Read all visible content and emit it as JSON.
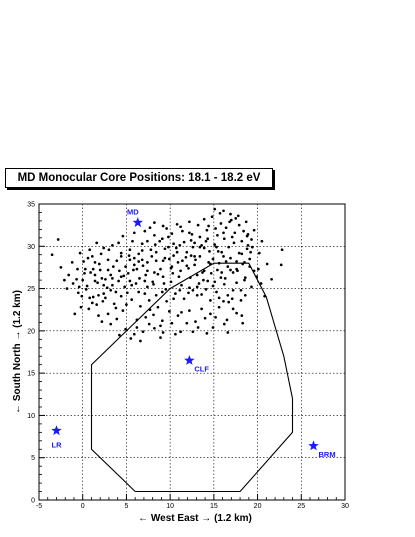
{
  "chart_data": {
    "type": "scatter",
    "title": "MD Monocular Core Positions: 18.1 - 18.2 eV",
    "xlabel": "← West East → (1.2 km)",
    "ylabel": "← South North → (1.2 km)",
    "xlim": [
      -5,
      30
    ],
    "ylim": [
      0,
      35
    ],
    "x_ticks": [
      -5,
      0,
      5,
      10,
      15,
      20,
      25,
      30
    ],
    "y_ticks": [
      0,
      5,
      10,
      15,
      20,
      25,
      30,
      35
    ],
    "grid": true,
    "marker_color": "#000000",
    "site_color": "#1a1aff",
    "sites": [
      {
        "name": "MD",
        "x": 6.3,
        "y": 32.8
      },
      {
        "name": "CLF",
        "x": 12.2,
        "y": 16.5
      },
      {
        "name": "LR",
        "x": -3.0,
        "y": 8.2
      },
      {
        "name": "BRM",
        "x": 26.4,
        "y": 6.4
      }
    ],
    "boundary": [
      [
        6,
        1
      ],
      [
        18,
        1
      ],
      [
        24,
        8
      ],
      [
        24,
        12
      ],
      [
        23,
        17
      ],
      [
        21,
        24
      ],
      [
        19,
        28
      ],
      [
        15,
        28
      ],
      [
        10,
        25
      ],
      [
        1,
        16
      ],
      [
        1,
        6
      ],
      [
        6,
        1
      ]
    ],
    "points": [
      [
        -2.8,
        30.8
      ],
      [
        -3.5,
        29
      ],
      [
        -2.5,
        27.5
      ],
      [
        -1.8,
        25
      ],
      [
        -0.9,
        22
      ],
      [
        -0.5,
        24.5
      ],
      [
        0,
        26
      ],
      [
        0.3,
        27.3
      ],
      [
        0.6,
        28.6
      ],
      [
        0.9,
        26.9
      ],
      [
        1.2,
        24
      ],
      [
        1.4,
        28.1
      ],
      [
        1.7,
        25.7
      ],
      [
        2,
        27.2
      ],
      [
        2.3,
        23.5
      ],
      [
        2.6,
        26.1
      ],
      [
        2.9,
        28.4
      ],
      [
        3.2,
        24.8
      ],
      [
        3.5,
        27.6
      ],
      [
        3.8,
        22.7
      ],
      [
        4.1,
        25.9
      ],
      [
        4.4,
        29.2
      ],
      [
        4.7,
        26.5
      ],
      [
        5,
        23.1
      ],
      [
        5.3,
        28.9
      ],
      [
        5.6,
        25.4
      ],
      [
        5.9,
        27.8
      ],
      [
        6.2,
        21.3
      ],
      [
        6.5,
        26.2
      ],
      [
        6.8,
        29.5
      ],
      [
        7.1,
        24.4
      ],
      [
        7.4,
        27.1
      ],
      [
        7.7,
        22.5
      ],
      [
        8,
        25.8
      ],
      [
        8.3,
        30.2
      ],
      [
        8.6,
        26.7
      ],
      [
        8.9,
        20.6
      ],
      [
        9.2,
        28.3
      ],
      [
        9.5,
        24.9
      ],
      [
        9.8,
        31.1
      ],
      [
        10.1,
        27.4
      ],
      [
        10.4,
        23.8
      ],
      [
        10.7,
        29.8
      ],
      [
        11,
        26.4
      ],
      [
        11.3,
        22.2
      ],
      [
        11.6,
        30.5
      ],
      [
        11.9,
        27.7
      ],
      [
        12.2,
        25.1
      ],
      [
        12.5,
        31.4
      ],
      [
        12.8,
        28.8
      ],
      [
        13.1,
        24.2
      ],
      [
        13.4,
        29.9
      ],
      [
        13.7,
        26.9
      ],
      [
        14,
        21.5
      ],
      [
        14.3,
        30.9
      ],
      [
        14.6,
        27.9
      ],
      [
        14.9,
        25.3
      ],
      [
        15.2,
        32.1
      ],
      [
        15.5,
        29.4
      ],
      [
        15.8,
        26.3
      ],
      [
        16.1,
        31.6
      ],
      [
        16.4,
        28.2
      ],
      [
        16.7,
        23.4
      ],
      [
        17,
        33.1
      ],
      [
        17.3,
        30.4
      ],
      [
        17.6,
        27.3
      ],
      [
        17.9,
        32.5
      ],
      [
        18.2,
        29.1
      ],
      [
        18.5,
        26
      ],
      [
        18.8,
        31.2
      ],
      [
        19.1,
        28.5
      ],
      [
        19.6,
        27.1
      ],
      [
        22.8,
        29.6
      ],
      [
        22.7,
        27.8
      ],
      [
        15.1,
        34.4
      ],
      [
        16.1,
        34.2
      ],
      [
        16.9,
        33.8
      ],
      [
        17.5,
        33.3
      ],
      [
        15.7,
        33.9
      ],
      [
        13.9,
        33.2
      ],
      [
        12.2,
        32.9
      ],
      [
        10.8,
        32.6
      ],
      [
        9.6,
        32.1
      ],
      [
        8.2,
        31.3
      ],
      [
        7.1,
        31.8
      ],
      [
        6.8,
        30.3
      ],
      [
        5.7,
        30.6
      ],
      [
        4.1,
        30.4
      ],
      [
        3,
        29.6
      ],
      [
        2.1,
        29.1
      ],
      [
        1.1,
        28.8
      ],
      [
        0.1,
        28.2
      ],
      [
        -0.6,
        27.3
      ],
      [
        0.5,
        25.3
      ],
      [
        1.1,
        23.3
      ],
      [
        1.8,
        21.8
      ],
      [
        2.9,
        22
      ],
      [
        3.9,
        21.4
      ],
      [
        4.9,
        20.2
      ],
      [
        5.9,
        19.6
      ],
      [
        6.9,
        19.9
      ],
      [
        7.6,
        20.8
      ],
      [
        8.1,
        21.9
      ],
      [
        9.1,
        21.2
      ],
      [
        9.9,
        22.3
      ],
      [
        10.9,
        21.8
      ],
      [
        11.9,
        20.9
      ],
      [
        12.9,
        21.1
      ],
      [
        13.6,
        22.6
      ],
      [
        14.6,
        22
      ],
      [
        15.6,
        22.8
      ],
      [
        16.5,
        21.3
      ],
      [
        17.6,
        22.1
      ],
      [
        18.1,
        23.6
      ],
      [
        18.6,
        24.2
      ],
      [
        19.3,
        25.2
      ],
      [
        17.2,
        24.8
      ],
      [
        16.2,
        25.5
      ],
      [
        15.3,
        24.6
      ],
      [
        14.3,
        25.9
      ],
      [
        13.3,
        25.6
      ],
      [
        12.3,
        26.3
      ],
      [
        11.3,
        25.4
      ],
      [
        10.3,
        26.8
      ],
      [
        9.3,
        25.6
      ],
      [
        8.4,
        24.2
      ],
      [
        7.4,
        25.2
      ],
      [
        6.4,
        24.6
      ],
      [
        5.4,
        25.9
      ],
      [
        4.4,
        24.1
      ],
      [
        3.4,
        25.4
      ],
      [
        2.4,
        24.4
      ],
      [
        1.4,
        25.9
      ],
      [
        1.9,
        27.9
      ],
      [
        2.9,
        27.2
      ],
      [
        3.9,
        28.3
      ],
      [
        4.9,
        27.6
      ],
      [
        5.9,
        28.6
      ],
      [
        6.9,
        27.7
      ],
      [
        7.9,
        28.8
      ],
      [
        8.9,
        27.3
      ],
      [
        9.9,
        28.5
      ],
      [
        10.9,
        28.1
      ],
      [
        11.9,
        29.3
      ],
      [
        12.9,
        28.4
      ],
      [
        13.9,
        29.8
      ],
      [
        14.9,
        28.5
      ],
      [
        15.9,
        29.3
      ],
      [
        16.9,
        28.6
      ],
      [
        17.9,
        29.2
      ],
      [
        18.9,
        30.1
      ],
      [
        18.4,
        31.8
      ],
      [
        17.4,
        31.6
      ],
      [
        16.4,
        32.2
      ],
      [
        15.4,
        31.3
      ],
      [
        14.4,
        32.4
      ],
      [
        13.4,
        31.1
      ],
      [
        12.4,
        30.7
      ],
      [
        11.4,
        31.8
      ],
      [
        10.4,
        30.3
      ],
      [
        9.4,
        29.7
      ],
      [
        8.4,
        29.3
      ],
      [
        7.4,
        30.6
      ],
      [
        6.4,
        29.1
      ],
      [
        5.4,
        29.6
      ],
      [
        4.4,
        28.8
      ],
      [
        3.4,
        30.1
      ],
      [
        2.4,
        29.8
      ],
      [
        1.6,
        30.4
      ],
      [
        0.8,
        29.6
      ],
      [
        -0.3,
        29.2
      ],
      [
        -1.2,
        28.1
      ],
      [
        -1.6,
        26.6
      ],
      [
        -2.1,
        26
      ],
      [
        -1.1,
        25.6
      ],
      [
        -0.1,
        24.1
      ],
      [
        0.7,
        22.6
      ],
      [
        1.6,
        23.1
      ],
      [
        2.6,
        23.9
      ],
      [
        3.6,
        23.2
      ],
      [
        4.6,
        22.4
      ],
      [
        5.6,
        23.7
      ],
      [
        6.6,
        22.9
      ],
      [
        7.6,
        23.6
      ],
      [
        8.6,
        22.8
      ],
      [
        9.6,
        23.5
      ],
      [
        10.6,
        24.4
      ],
      [
        11.6,
        23.8
      ],
      [
        12.6,
        24.8
      ],
      [
        13.6,
        24.3
      ],
      [
        14.6,
        23.6
      ],
      [
        15.6,
        23.9
      ],
      [
        16.6,
        24.2
      ],
      [
        17.6,
        25.7
      ],
      [
        18.6,
        26.3
      ],
      [
        19.1,
        27.6
      ],
      [
        13.9,
        27.1
      ],
      [
        13.1,
        26.6
      ],
      [
        12.1,
        27.4
      ],
      [
        11.2,
        27.1
      ],
      [
        10.2,
        27.6
      ],
      [
        9.2,
        26.4
      ],
      [
        8.2,
        26.9
      ],
      [
        7.2,
        26.6
      ],
      [
        6.2,
        27.3
      ],
      [
        5.2,
        26.8
      ],
      [
        4.2,
        27.1
      ],
      [
        3.2,
        26.6
      ],
      [
        2.2,
        26.2
      ],
      [
        1.2,
        27.3
      ],
      [
        0.2,
        26.8
      ],
      [
        -0.7,
        26.1
      ],
      [
        4.6,
        31.2
      ],
      [
        5.9,
        31.6
      ],
      [
        7.7,
        32.2
      ],
      [
        9.1,
        30.9
      ],
      [
        11.1,
        30.1
      ],
      [
        12.6,
        29.9
      ],
      [
        14.1,
        30.6
      ],
      [
        15.1,
        30.2
      ],
      [
        16.2,
        30.9
      ],
      [
        17.1,
        31.1
      ],
      [
        18.2,
        30.6
      ],
      [
        18.8,
        29.7
      ],
      [
        19.2,
        29.3
      ],
      [
        16.7,
        29.9
      ],
      [
        15.6,
        28
      ],
      [
        14.7,
        26.8
      ],
      [
        13.8,
        26
      ],
      [
        12.8,
        27.8
      ],
      [
        11.8,
        28.7
      ],
      [
        10.8,
        29.3
      ],
      [
        9.8,
        29.9
      ],
      [
        8.8,
        30.6
      ],
      [
        7.8,
        29.6
      ],
      [
        6.8,
        28.4
      ],
      [
        5.8,
        27.2
      ],
      [
        4.8,
        25.2
      ],
      [
        3.8,
        24.6
      ],
      [
        2.8,
        25.1
      ],
      [
        1.8,
        24.2
      ],
      [
        0.8,
        23.9
      ],
      [
        -0.2,
        22.8
      ],
      [
        2.2,
        21.1
      ],
      [
        3.2,
        20.8
      ],
      [
        4.2,
        19.5
      ],
      [
        6.2,
        20.4
      ],
      [
        7.2,
        21.6
      ],
      [
        8.2,
        20.3
      ],
      [
        9.2,
        19.8
      ],
      [
        10.2,
        20.9
      ],
      [
        11.2,
        19.9
      ],
      [
        12.2,
        22.4
      ],
      [
        13.2,
        20.4
      ],
      [
        14.2,
        19.7
      ],
      [
        15.2,
        21.6
      ],
      [
        16.2,
        20.8
      ],
      [
        17.2,
        22.6
      ],
      [
        18.2,
        21.8
      ],
      [
        15.9,
        26.9
      ],
      [
        16.6,
        27.6
      ],
      [
        17.6,
        28.2
      ],
      [
        18.3,
        27.9
      ],
      [
        17.2,
        26.9
      ],
      [
        16.3,
        26.2
      ],
      [
        15.4,
        27.2
      ],
      [
        14.4,
        28.1
      ],
      [
        13.4,
        28.8
      ],
      [
        12.4,
        28.9
      ],
      [
        11.4,
        28.3
      ],
      [
        10.4,
        28.9
      ],
      [
        9.4,
        28.6
      ],
      [
        8.4,
        28.3
      ],
      [
        7.4,
        28.1
      ],
      [
        6.4,
        28.2
      ],
      [
        5.4,
        28.4
      ],
      [
        4.4,
        26.4
      ],
      [
        3.4,
        26.2
      ],
      [
        2.4,
        25.4
      ],
      [
        1.4,
        26.6
      ],
      [
        0.4,
        24.9
      ],
      [
        -0.4,
        25.2
      ],
      [
        5.1,
        24.5
      ],
      [
        6.1,
        25.6
      ],
      [
        7.1,
        25.9
      ],
      [
        8.1,
        25.5
      ],
      [
        9.1,
        24.6
      ],
      [
        10.1,
        25.8
      ],
      [
        11.1,
        24.8
      ],
      [
        12.1,
        24.5
      ],
      [
        13.1,
        25.2
      ],
      [
        14.1,
        24.9
      ],
      [
        15.1,
        25.8
      ],
      [
        16.1,
        23.5
      ],
      [
        17.1,
        23.8
      ],
      [
        18.1,
        24.8
      ],
      [
        14.2,
        31.9
      ],
      [
        13.2,
        32.5
      ],
      [
        12.2,
        31.6
      ],
      [
        11.2,
        32.3
      ],
      [
        10.2,
        31.5
      ],
      [
        9.2,
        32.4
      ],
      [
        8.2,
        32.8
      ],
      [
        14.8,
        33.5
      ],
      [
        15.8,
        32.7
      ],
      [
        16.8,
        32.9
      ],
      [
        17.8,
        33.6
      ],
      [
        18.7,
        32.9
      ],
      [
        18.9,
        31.4
      ],
      [
        19.3,
        30.8
      ],
      [
        12.8,
        30.4
      ],
      [
        13.6,
        30.1
      ],
      [
        14.5,
        29.4
      ],
      [
        15.3,
        29.9
      ],
      [
        16.1,
        28.8
      ],
      [
        16.9,
        27.2
      ],
      [
        17.7,
        27.1
      ],
      [
        18.5,
        28.1
      ],
      [
        19.4,
        29.9
      ],
      [
        6.6,
        18.8
      ],
      [
        5.5,
        19.1
      ],
      [
        8.9,
        19.2
      ],
      [
        10.6,
        19.6
      ],
      [
        12.6,
        19.9
      ],
      [
        14.9,
        20.4
      ],
      [
        16.6,
        19.8
      ],
      [
        18.3,
        20.9
      ],
      [
        19.9,
        26.4
      ],
      [
        20.1,
        27.3
      ],
      [
        20.4,
        25.6
      ],
      [
        20.8,
        24.1
      ],
      [
        20.2,
        29.2
      ],
      [
        19.6,
        31.9
      ],
      [
        20.5,
        30.6
      ],
      [
        21.1,
        27.9
      ],
      [
        21.6,
        26.1
      ]
    ]
  }
}
